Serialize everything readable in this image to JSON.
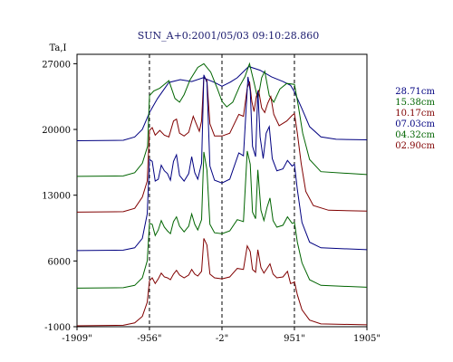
{
  "chart_data": {
    "type": "line",
    "title": "SUN_A+0:2001/05/03 09:10:28.860",
    "ylabel": "Ta,I",
    "xlim": [
      -1909,
      1905
    ],
    "ylim": [
      -1000,
      28000
    ],
    "x_ticks": [
      {
        "value": -1909,
        "label": "-1909\""
      },
      {
        "value": -956,
        "label": "-956\""
      },
      {
        "value": -2,
        "label": "-2\""
      },
      {
        "value": 951,
        "label": "951\""
      },
      {
        "value": 1905,
        "label": "1905\""
      }
    ],
    "y_ticks": [
      {
        "value": 27000,
        "label": "27000"
      },
      {
        "value": 20000,
        "label": "20000"
      },
      {
        "value": 13000,
        "label": "13000"
      },
      {
        "value": 6000,
        "label": "6000"
      },
      {
        "value": -1000,
        "label": "-1000"
      }
    ],
    "dashed_x": [
      -956,
      -2,
      951
    ],
    "series": [
      {
        "name": "28.71cm",
        "color": "#000080",
        "baseline": 18800,
        "points": [
          [
            -1909,
            18800
          ],
          [
            -1300,
            18850
          ],
          [
            -1150,
            19200
          ],
          [
            -1050,
            20000
          ],
          [
            -956,
            21800
          ],
          [
            -850,
            23300
          ],
          [
            -700,
            25000
          ],
          [
            -550,
            25300
          ],
          [
            -400,
            25100
          ],
          [
            -250,
            25500
          ],
          [
            -100,
            25000
          ],
          [
            -2,
            24600
          ],
          [
            100,
            25000
          ],
          [
            200,
            25500
          ],
          [
            350,
            26700
          ],
          [
            500,
            26300
          ],
          [
            650,
            25600
          ],
          [
            800,
            25100
          ],
          [
            900,
            24700
          ],
          [
            951,
            24000
          ],
          [
            1050,
            22200
          ],
          [
            1150,
            20300
          ],
          [
            1300,
            19200
          ],
          [
            1500,
            18950
          ],
          [
            1905,
            18900
          ]
        ]
      },
      {
        "name": "15.38cm",
        "color": "#006400",
        "baseline": 15000,
        "points": [
          [
            -1909,
            15000
          ],
          [
            -1300,
            15050
          ],
          [
            -1150,
            15400
          ],
          [
            -1050,
            16400
          ],
          [
            -980,
            18200
          ],
          [
            -956,
            23600
          ],
          [
            -900,
            24100
          ],
          [
            -820,
            24400
          ],
          [
            -760,
            24800
          ],
          [
            -700,
            25200
          ],
          [
            -620,
            23300
          ],
          [
            -560,
            22900
          ],
          [
            -500,
            23700
          ],
          [
            -420,
            25300
          ],
          [
            -320,
            26600
          ],
          [
            -240,
            27000
          ],
          [
            -150,
            26100
          ],
          [
            -60,
            24300
          ],
          [
            -2,
            23000
          ],
          [
            60,
            22400
          ],
          [
            140,
            22900
          ],
          [
            230,
            24600
          ],
          [
            300,
            25600
          ],
          [
            360,
            27000
          ],
          [
            420,
            25000
          ],
          [
            470,
            23200
          ],
          [
            520,
            25500
          ],
          [
            560,
            26200
          ],
          [
            620,
            23600
          ],
          [
            680,
            22900
          ],
          [
            760,
            24300
          ],
          [
            850,
            24900
          ],
          [
            951,
            24800
          ],
          [
            1000,
            22600
          ],
          [
            1060,
            19600
          ],
          [
            1150,
            16800
          ],
          [
            1300,
            15500
          ],
          [
            1905,
            15200
          ]
        ]
      },
      {
        "name": "10.17cm",
        "color": "#800000",
        "baseline": 11200,
        "points": [
          [
            -1909,
            11200
          ],
          [
            -1300,
            11250
          ],
          [
            -1150,
            11600
          ],
          [
            -1050,
            12800
          ],
          [
            -985,
            14500
          ],
          [
            -956,
            19900
          ],
          [
            -920,
            20200
          ],
          [
            -880,
            19400
          ],
          [
            -820,
            19900
          ],
          [
            -760,
            19400
          ],
          [
            -700,
            19200
          ],
          [
            -640,
            20900
          ],
          [
            -600,
            21100
          ],
          [
            -560,
            19600
          ],
          [
            -500,
            19300
          ],
          [
            -440,
            19700
          ],
          [
            -380,
            21400
          ],
          [
            -340,
            20600
          ],
          [
            -300,
            19800
          ],
          [
            -270,
            20900
          ],
          [
            -240,
            25700
          ],
          [
            -200,
            25200
          ],
          [
            -160,
            20600
          ],
          [
            -100,
            19300
          ],
          [
            -2,
            19300
          ],
          [
            100,
            19600
          ],
          [
            220,
            21600
          ],
          [
            280,
            21400
          ],
          [
            330,
            24400
          ],
          [
            360,
            25100
          ],
          [
            390,
            23000
          ],
          [
            420,
            21900
          ],
          [
            450,
            23500
          ],
          [
            480,
            24200
          ],
          [
            520,
            22300
          ],
          [
            560,
            21800
          ],
          [
            600,
            22800
          ],
          [
            640,
            23500
          ],
          [
            680,
            21600
          ],
          [
            750,
            20400
          ],
          [
            850,
            20900
          ],
          [
            920,
            21500
          ],
          [
            951,
            21700
          ],
          [
            990,
            19600
          ],
          [
            1040,
            16400
          ],
          [
            1100,
            13400
          ],
          [
            1200,
            11900
          ],
          [
            1400,
            11400
          ],
          [
            1905,
            11300
          ]
        ]
      },
      {
        "name": "07.03cm",
        "color": "#000080",
        "baseline": 7100,
        "points": [
          [
            -1909,
            7100
          ],
          [
            -1300,
            7150
          ],
          [
            -1150,
            7400
          ],
          [
            -1050,
            8400
          ],
          [
            -985,
            11000
          ],
          [
            -956,
            16800
          ],
          [
            -920,
            16600
          ],
          [
            -880,
            14500
          ],
          [
            -840,
            14700
          ],
          [
            -800,
            16200
          ],
          [
            -760,
            15600
          ],
          [
            -720,
            15300
          ],
          [
            -680,
            14600
          ],
          [
            -640,
            16600
          ],
          [
            -600,
            17300
          ],
          [
            -560,
            15100
          ],
          [
            -500,
            14500
          ],
          [
            -440,
            15300
          ],
          [
            -400,
            17100
          ],
          [
            -360,
            15400
          ],
          [
            -320,
            14700
          ],
          [
            -270,
            16400
          ],
          [
            -240,
            25800
          ],
          [
            -200,
            25000
          ],
          [
            -160,
            16100
          ],
          [
            -100,
            14600
          ],
          [
            -2,
            14300
          ],
          [
            100,
            14700
          ],
          [
            220,
            17500
          ],
          [
            280,
            17200
          ],
          [
            340,
            25600
          ],
          [
            370,
            24100
          ],
          [
            400,
            18200
          ],
          [
            440,
            17100
          ],
          [
            470,
            24100
          ],
          [
            500,
            19200
          ],
          [
            540,
            16900
          ],
          [
            580,
            19600
          ],
          [
            620,
            20300
          ],
          [
            660,
            16900
          ],
          [
            720,
            15600
          ],
          [
            800,
            15800
          ],
          [
            860,
            16700
          ],
          [
            920,
            16100
          ],
          [
            951,
            16300
          ],
          [
            990,
            13600
          ],
          [
            1050,
            10100
          ],
          [
            1150,
            8000
          ],
          [
            1300,
            7400
          ],
          [
            1905,
            7200
          ]
        ]
      },
      {
        "name": "04.32cm",
        "color": "#006400",
        "baseline": 3100,
        "points": [
          [
            -1909,
            3100
          ],
          [
            -1300,
            3150
          ],
          [
            -1150,
            3400
          ],
          [
            -1050,
            4200
          ],
          [
            -985,
            6000
          ],
          [
            -956,
            10000
          ],
          [
            -920,
            9900
          ],
          [
            -880,
            8700
          ],
          [
            -840,
            9300
          ],
          [
            -800,
            10300
          ],
          [
            -760,
            9600
          ],
          [
            -720,
            9200
          ],
          [
            -680,
            8900
          ],
          [
            -640,
            10200
          ],
          [
            -600,
            10700
          ],
          [
            -560,
            9700
          ],
          [
            -500,
            9100
          ],
          [
            -440,
            9700
          ],
          [
            -400,
            11000
          ],
          [
            -360,
            9900
          ],
          [
            -320,
            9300
          ],
          [
            -270,
            10400
          ],
          [
            -240,
            17600
          ],
          [
            -200,
            15700
          ],
          [
            -160,
            9900
          ],
          [
            -100,
            9000
          ],
          [
            -2,
            8900
          ],
          [
            100,
            9200
          ],
          [
            200,
            10400
          ],
          [
            280,
            10200
          ],
          [
            330,
            17700
          ],
          [
            370,
            16300
          ],
          [
            400,
            11200
          ],
          [
            440,
            10500
          ],
          [
            470,
            15700
          ],
          [
            510,
            11400
          ],
          [
            550,
            10300
          ],
          [
            590,
            11700
          ],
          [
            630,
            12700
          ],
          [
            670,
            10300
          ],
          [
            720,
            9600
          ],
          [
            800,
            9800
          ],
          [
            860,
            10700
          ],
          [
            920,
            10000
          ],
          [
            951,
            10100
          ],
          [
            990,
            8000
          ],
          [
            1050,
            5800
          ],
          [
            1150,
            4000
          ],
          [
            1300,
            3400
          ],
          [
            1905,
            3200
          ]
        ]
      },
      {
        "name": "02.90cm",
        "color": "#800000",
        "baseline": -900,
        "points": [
          [
            -1909,
            -900
          ],
          [
            -1300,
            -850
          ],
          [
            -1150,
            -600
          ],
          [
            -1050,
            100
          ],
          [
            -985,
            1600
          ],
          [
            -956,
            3900
          ],
          [
            -920,
            4200
          ],
          [
            -880,
            3600
          ],
          [
            -840,
            4100
          ],
          [
            -800,
            4700
          ],
          [
            -760,
            4300
          ],
          [
            -720,
            4200
          ],
          [
            -680,
            4000
          ],
          [
            -640,
            4600
          ],
          [
            -600,
            5000
          ],
          [
            -560,
            4500
          ],
          [
            -500,
            4200
          ],
          [
            -440,
            4500
          ],
          [
            -400,
            5100
          ],
          [
            -360,
            4600
          ],
          [
            -320,
            4400
          ],
          [
            -270,
            4900
          ],
          [
            -240,
            8400
          ],
          [
            -200,
            7700
          ],
          [
            -160,
            4600
          ],
          [
            -100,
            4200
          ],
          [
            -2,
            4100
          ],
          [
            100,
            4300
          ],
          [
            200,
            5200
          ],
          [
            280,
            5100
          ],
          [
            330,
            7600
          ],
          [
            370,
            7000
          ],
          [
            400,
            5100
          ],
          [
            440,
            4800
          ],
          [
            470,
            7200
          ],
          [
            510,
            5300
          ],
          [
            550,
            4700
          ],
          [
            590,
            5200
          ],
          [
            630,
            5700
          ],
          [
            670,
            4600
          ],
          [
            720,
            4200
          ],
          [
            800,
            4300
          ],
          [
            860,
            4900
          ],
          [
            900,
            3600
          ],
          [
            940,
            3700
          ],
          [
            951,
            3800
          ],
          [
            990,
            2400
          ],
          [
            1050,
            800
          ],
          [
            1150,
            -300
          ],
          [
            1300,
            -700
          ],
          [
            1905,
            -800
          ]
        ]
      }
    ]
  }
}
